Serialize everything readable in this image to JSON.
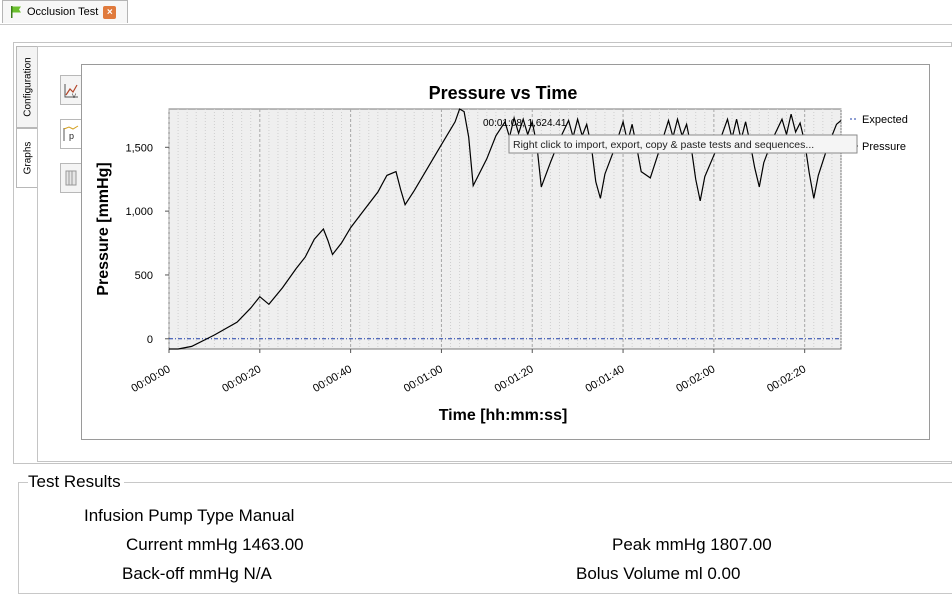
{
  "tab": {
    "title": "Occlusion Test",
    "close_glyph": "×"
  },
  "side_tabs": {
    "configuration": "Configuration",
    "graphs": "Graphs"
  },
  "toolbar": {
    "expected_icon": "line-chart-icon",
    "pressure_icon": "pressure-chart-icon",
    "table_icon": "table-icon"
  },
  "chart_data": {
    "type": "line",
    "title": "Pressure vs Time",
    "xlabel": "Time [hh:mm:ss]",
    "ylabel": "Pressure [mmHg]",
    "x_ticks": [
      "00:00:00",
      "00:00:20",
      "00:00:40",
      "00:01:00",
      "00:01:20",
      "00:01:40",
      "00:02:00",
      "00:02:20"
    ],
    "y_ticks": [
      "0",
      "500",
      "1,000",
      "1,500"
    ],
    "xlim": [
      0,
      148
    ],
    "ylim": [
      -80,
      1800
    ],
    "legend": [
      "Expected",
      "Pressure"
    ],
    "legend_position": "right",
    "series": [
      {
        "name": "Expected",
        "points": [
          [
            0,
            0
          ],
          [
            148,
            0
          ]
        ],
        "color": "#1f3fa8"
      },
      {
        "name": "Pressure",
        "color": "#000000",
        "points": [
          [
            0,
            -80
          ],
          [
            2,
            -80
          ],
          [
            5,
            -60
          ],
          [
            10,
            30
          ],
          [
            15,
            130
          ],
          [
            18,
            240
          ],
          [
            20,
            330
          ],
          [
            22,
            270
          ],
          [
            25,
            400
          ],
          [
            28,
            550
          ],
          [
            30,
            640
          ],
          [
            32,
            780
          ],
          [
            34,
            860
          ],
          [
            35,
            770
          ],
          [
            36,
            660
          ],
          [
            38,
            750
          ],
          [
            40,
            870
          ],
          [
            43,
            1010
          ],
          [
            46,
            1150
          ],
          [
            48,
            1280
          ],
          [
            50,
            1310
          ],
          [
            51,
            1170
          ],
          [
            52,
            1050
          ],
          [
            54,
            1160
          ],
          [
            57,
            1340
          ],
          [
            60,
            1520
          ],
          [
            63,
            1700
          ],
          [
            64,
            1800
          ],
          [
            65,
            1780
          ],
          [
            66,
            1580
          ],
          [
            67,
            1200
          ],
          [
            70,
            1410
          ],
          [
            72,
            1590
          ],
          [
            74,
            1700
          ],
          [
            75,
            1580
          ],
          [
            76,
            1730
          ],
          [
            77,
            1610
          ],
          [
            78,
            1720
          ],
          [
            79,
            1600
          ],
          [
            80,
            1700
          ],
          [
            81,
            1520
          ],
          [
            82,
            1190
          ],
          [
            84,
            1380
          ],
          [
            86,
            1560
          ],
          [
            88,
            1710
          ],
          [
            89,
            1580
          ],
          [
            90,
            1720
          ],
          [
            91,
            1590
          ],
          [
            92,
            1680
          ],
          [
            93,
            1510
          ],
          [
            94,
            1230
          ],
          [
            95,
            1100
          ],
          [
            96,
            1290
          ],
          [
            98,
            1480
          ],
          [
            100,
            1700
          ],
          [
            101,
            1540
          ],
          [
            102,
            1680
          ],
          [
            103,
            1500
          ],
          [
            104,
            1310
          ],
          [
            106,
            1260
          ],
          [
            108,
            1480
          ],
          [
            110,
            1710
          ],
          [
            111,
            1580
          ],
          [
            112,
            1720
          ],
          [
            113,
            1590
          ],
          [
            114,
            1680
          ],
          [
            115,
            1500
          ],
          [
            116,
            1250
          ],
          [
            117,
            1080
          ],
          [
            118,
            1270
          ],
          [
            121,
            1520
          ],
          [
            123,
            1720
          ],
          [
            124,
            1570
          ],
          [
            125,
            1720
          ],
          [
            126,
            1560
          ],
          [
            127,
            1700
          ],
          [
            128,
            1530
          ],
          [
            129,
            1340
          ],
          [
            130,
            1190
          ],
          [
            131,
            1380
          ],
          [
            133,
            1570
          ],
          [
            135,
            1720
          ],
          [
            136,
            1600
          ],
          [
            137,
            1760
          ],
          [
            138,
            1620
          ],
          [
            139,
            1690
          ],
          [
            140,
            1540
          ],
          [
            141,
            1300
          ],
          [
            142,
            1100
          ],
          [
            143,
            1280
          ],
          [
            145,
            1500
          ],
          [
            147,
            1680
          ],
          [
            148,
            1710
          ]
        ]
      }
    ],
    "cursor_readout": "00:01:08, 1,624.41",
    "tooltip": "Right click to import, export, copy & paste tests and sequences..."
  },
  "results": {
    "title": "Test Results",
    "pump_type": "Infusion Pump Type Manual",
    "current": "Current mmHg 1463.00",
    "backoff": "Back-off mmHg N/A",
    "peak": "Peak mmHg 1807.00",
    "bolus": "Bolus Volume ml 0.00"
  }
}
